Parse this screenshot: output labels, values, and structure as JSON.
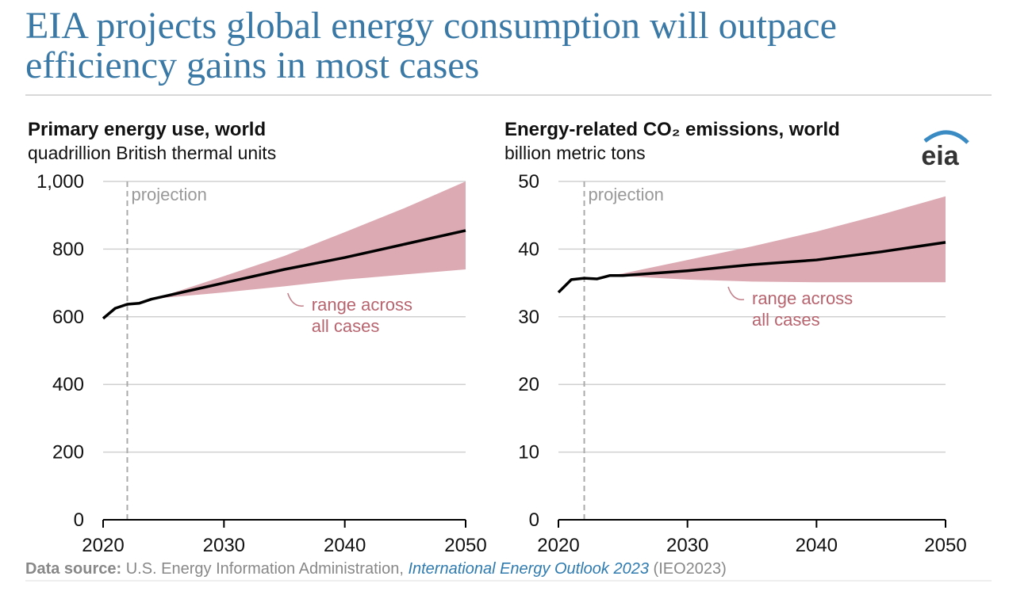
{
  "page": {
    "title": [
      "EIA projects global energy consumption will outpace",
      "efficiency gains in most cases"
    ],
    "logo": "eia",
    "source": {
      "label": "Data source:",
      "text": "U.S. Energy Information Administration,",
      "link": "International Energy Outlook 2023",
      "suffix": "(IEO2023)"
    }
  },
  "chart_data": [
    {
      "type": "line",
      "title": "Primary energy use, world",
      "subtitle": "quadrillion British thermal units",
      "x": [
        2020,
        2021,
        2022,
        2023,
        2024,
        2025,
        2030,
        2035,
        2040,
        2045,
        2050
      ],
      "series": [
        {
          "color": "#000000",
          "values": [
            595,
            625,
            637,
            640,
            652,
            660,
            700,
            740,
            775,
            815,
            855
          ]
        }
      ],
      "range": {
        "color": "#dcaab3",
        "upper": [
          null,
          null,
          null,
          null,
          652,
          662,
          720,
          780,
          850,
          922,
          1000
        ],
        "lower": [
          null,
          null,
          null,
          null,
          652,
          656,
          672,
          690,
          710,
          725,
          740
        ]
      },
      "annotation": [
        "range across",
        "all cases"
      ],
      "projection": {
        "x": 2022,
        "label": "projection"
      },
      "xlim": [
        2020,
        2050
      ],
      "xticks": [
        2020,
        2030,
        2040,
        2050
      ],
      "ylim": [
        0,
        1000
      ],
      "yticks": [
        0,
        200,
        400,
        600,
        800,
        {
          "value": 1000,
          "label": "1,000"
        }
      ],
      "grid": true
    },
    {
      "type": "line",
      "title": "Energy-related CO₂ emissions, world",
      "subtitle": "billion metric tons",
      "x": [
        2020,
        2021,
        2022,
        2023,
        2024,
        2025,
        2030,
        2035,
        2040,
        2045,
        2050
      ],
      "series": [
        {
          "color": "#000000",
          "values": [
            33.6,
            35.5,
            35.7,
            35.6,
            36.1,
            36.1,
            36.8,
            37.7,
            38.4,
            39.6,
            41
          ]
        }
      ],
      "range": {
        "color": "#dcaab3",
        "upper": [
          null,
          null,
          null,
          null,
          36.1,
          36.4,
          38.4,
          40.4,
          42.6,
          45.1,
          47.8
        ],
        "lower": [
          null,
          null,
          null,
          null,
          36.1,
          36.0,
          35.5,
          35.2,
          35.1,
          35.1,
          35.1
        ]
      },
      "annotation": [
        "range across",
        "all cases"
      ],
      "projection": {
        "x": 2022,
        "label": "projection"
      },
      "xlim": [
        2020,
        2050
      ],
      "xticks": [
        2020,
        2030,
        2040,
        2050
      ],
      "ylim": [
        0,
        50
      ],
      "yticks": [
        0,
        10,
        20,
        30,
        40,
        50
      ],
      "grid": true
    }
  ]
}
